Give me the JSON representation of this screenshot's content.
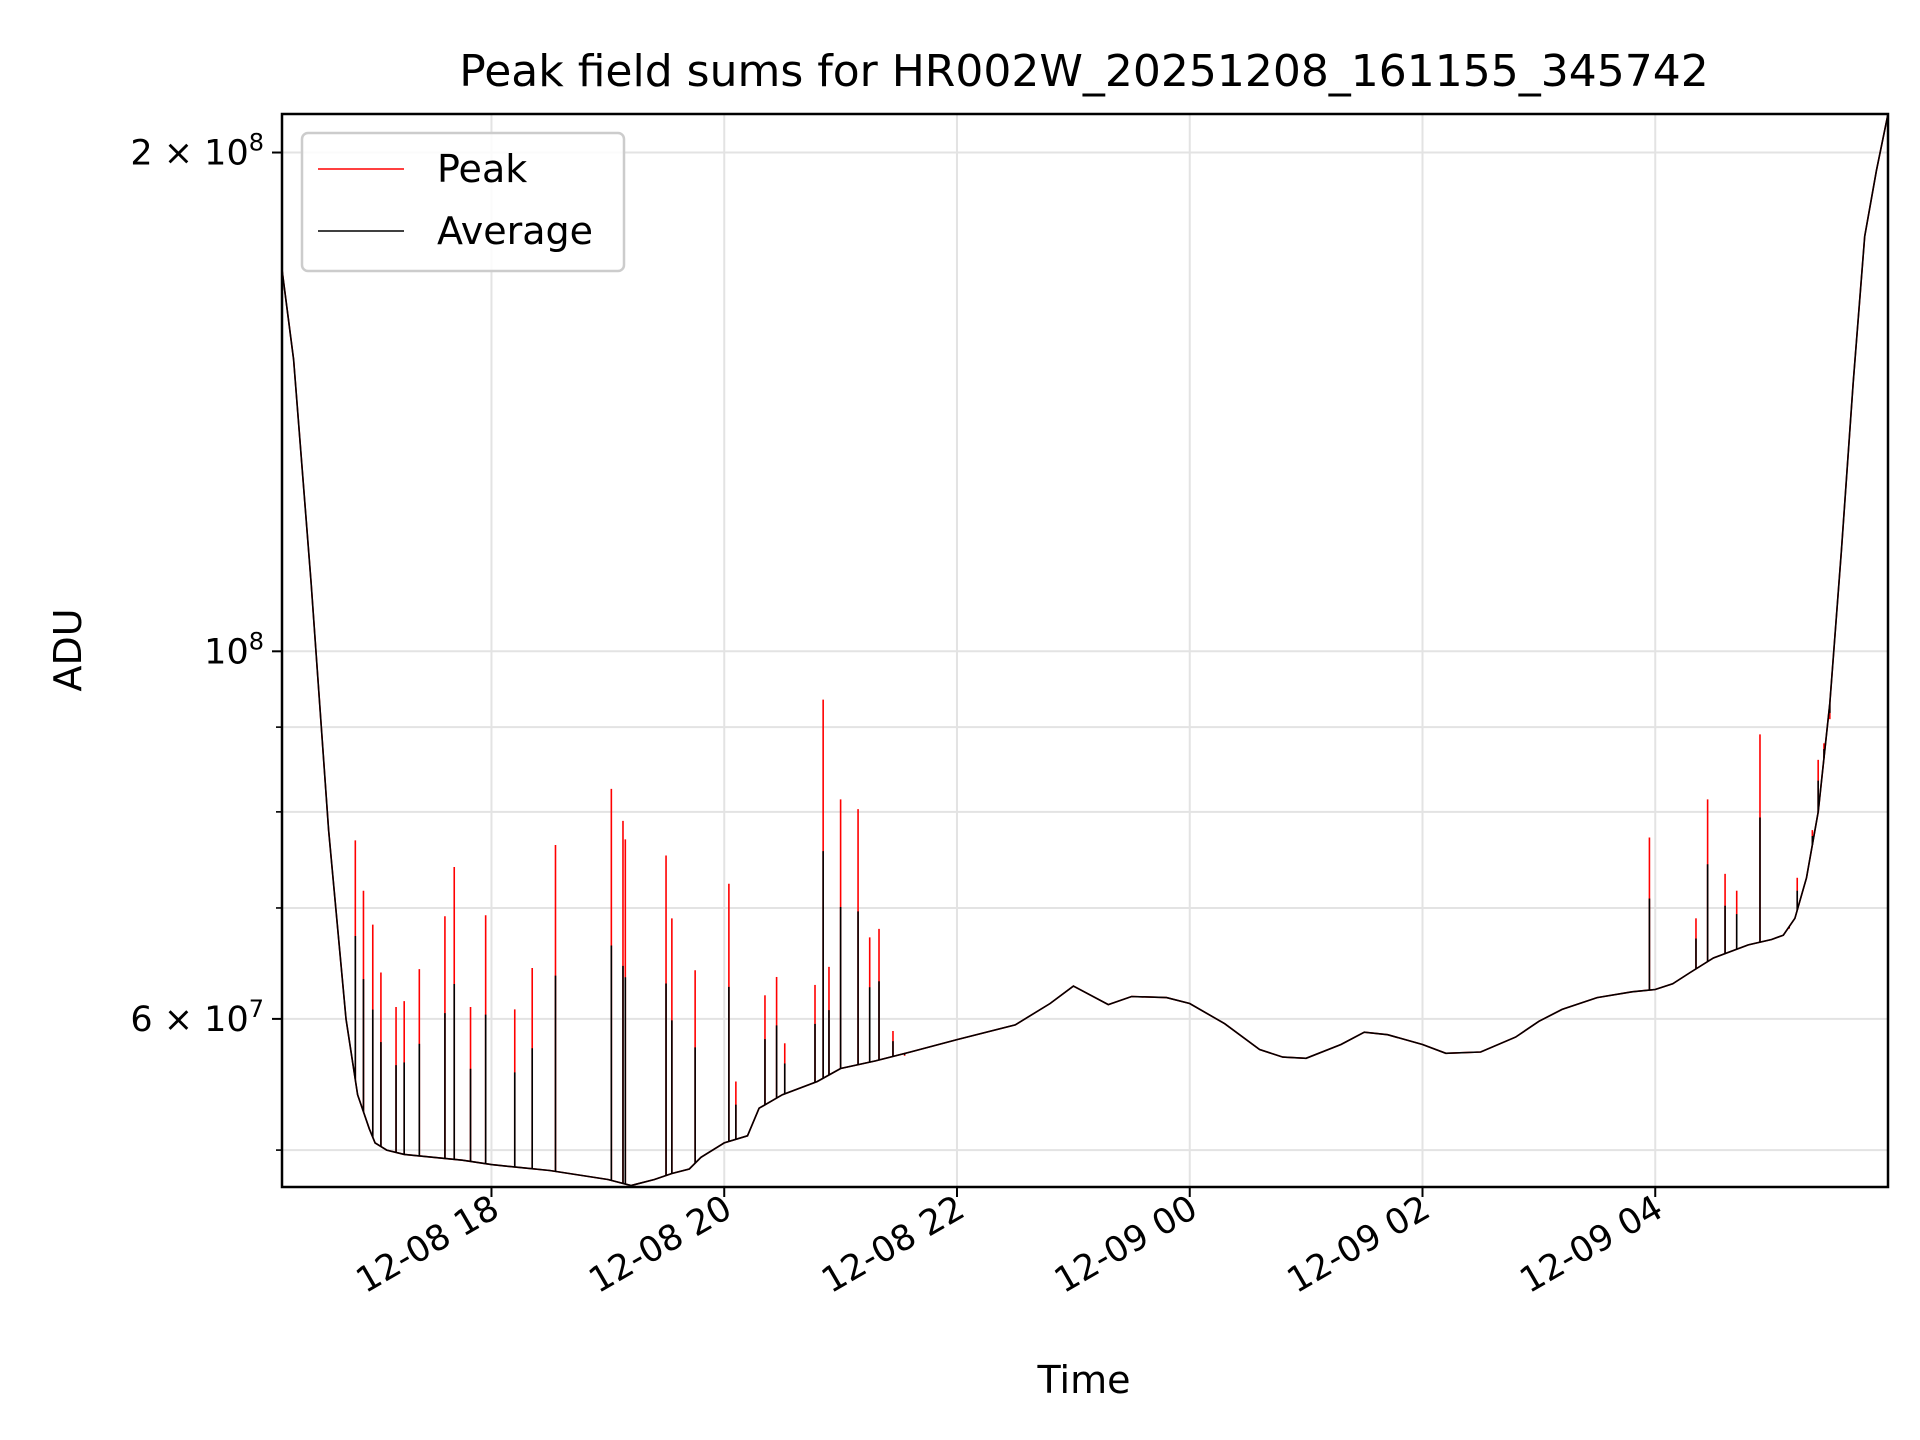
{
  "chart_data": {
    "type": "line",
    "title": "Peak field sums for HR002W_20251208_161155_345742",
    "xlabel": "Time",
    "ylabel": "ADU",
    "yscale": "log",
    "grid": true,
    "legend_position": "upper-left",
    "xlim_hours": [
      16.2,
      30.0
    ],
    "ylim": [
      47500000,
      211000000
    ],
    "x_units": "hours since 12-08 00:00",
    "x_ticks": [
      {
        "value": 18,
        "label": "12-08 18"
      },
      {
        "value": 20,
        "label": "12-08 20"
      },
      {
        "value": 22,
        "label": "12-08 22"
      },
      {
        "value": 24,
        "label": "12-09 00"
      },
      {
        "value": 26,
        "label": "12-09 02"
      },
      {
        "value": 28,
        "label": "12-09 04"
      }
    ],
    "y_major_ticks": [
      {
        "value": 60000000,
        "base": "6 × 10",
        "exp": "7"
      },
      {
        "value": 100000000,
        "base": "10",
        "exp": "8"
      },
      {
        "value": 200000000,
        "base": "2 × 10",
        "exp": "8"
      }
    ],
    "y_minor_ticks": [
      50000000,
      70000000,
      80000000,
      90000000
    ],
    "series": [
      {
        "name": "Average",
        "color": "#000000",
        "x": [
          16.2,
          16.3,
          16.45,
          16.6,
          16.75,
          16.85,
          16.95,
          17.0,
          17.1,
          17.25,
          17.5,
          17.75,
          18.0,
          18.25,
          18.5,
          18.75,
          19.0,
          19.2,
          19.4,
          19.55,
          19.7,
          19.8,
          20.0,
          20.2,
          20.3,
          20.5,
          20.8,
          21.0,
          21.3,
          21.6,
          22.0,
          22.5,
          22.8,
          23.0,
          23.3,
          23.5,
          23.8,
          24.0,
          24.3,
          24.6,
          24.8,
          25.0,
          25.3,
          25.5,
          25.7,
          26.0,
          26.2,
          26.5,
          26.8,
          27.0,
          27.2,
          27.5,
          27.8,
          28.0,
          28.15,
          28.3,
          28.5,
          28.8,
          29.0,
          29.1,
          29.2,
          29.3,
          29.4,
          29.5,
          29.6,
          29.7,
          29.8,
          29.9,
          30.0
        ],
        "y": [
          170000000,
          150000000,
          110000000,
          78000000,
          60000000,
          54000000,
          51500000,
          50500000,
          50000000,
          49700000,
          49500000,
          49300000,
          49000000,
          48800000,
          48600000,
          48300000,
          48000000,
          47600000,
          48000000,
          48400000,
          48700000,
          49500000,
          50500000,
          51000000,
          53000000,
          54000000,
          55000000,
          56000000,
          56600000,
          57300000,
          58300000,
          59500000,
          61300000,
          62800000,
          61200000,
          61900000,
          61800000,
          61300000,
          59600000,
          57500000,
          56900000,
          56800000,
          57900000,
          58900000,
          58700000,
          57900000,
          57200000,
          57300000,
          58500000,
          59800000,
          60800000,
          61800000,
          62300000,
          62500000,
          63000000,
          64000000,
          65300000,
          66500000,
          67000000,
          67400000,
          69000000,
          73000000,
          80000000,
          93000000,
          115000000,
          145000000,
          178000000,
          195000000,
          211000000
        ]
      },
      {
        "name": "Peak",
        "color": "#ff0000",
        "spikes_x": [
          16.83,
          16.9,
          16.98,
          17.05,
          17.18,
          17.25,
          17.38,
          17.6,
          17.68,
          17.82,
          17.95,
          18.2,
          18.35,
          18.55,
          19.03,
          19.13,
          19.15,
          19.5,
          19.55,
          19.75,
          20.04,
          20.1,
          20.35,
          20.45,
          20.52,
          20.78,
          20.85,
          20.9,
          21.0,
          21.15,
          21.25,
          21.33,
          21.45,
          21.55,
          27.95,
          28.35,
          28.45,
          28.6,
          28.7,
          28.9,
          29.15,
          29.22,
          29.35,
          29.4,
          29.45,
          29.5
        ],
        "spikes_y": [
          76900000,
          71700000,
          68400000,
          64000000,
          61000000,
          61500000,
          64300000,
          69200000,
          74100000,
          61000000,
          69300000,
          60800000,
          64400000,
          76400000,
          82600000,
          79000000,
          77000000,
          75300000,
          69000000,
          64200000,
          72400000,
          55000000,
          62000000,
          63600000,
          58000000,
          62900000,
          93500000,
          64500000,
          81400000,
          80300000,
          67200000,
          68000000,
          59000000,
          57000000,
          77200000,
          69000000,
          81400000,
          73400000,
          71700000,
          89100000,
          68000000,
          73000000,
          78000000,
          86000000,
          88000000,
          91000000
        ]
      }
    ]
  }
}
